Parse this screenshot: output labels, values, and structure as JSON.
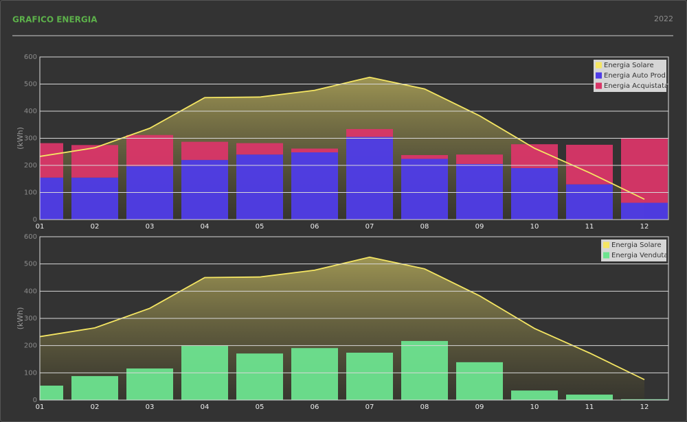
{
  "header": {
    "title": "GRAFICO ENERGIA",
    "year": "2022"
  },
  "chart_data": [
    {
      "type": "bar",
      "y_label": "(kWh)",
      "stacked": true,
      "grid": true,
      "legend": "top-right",
      "categories": [
        "01",
        "02",
        "03",
        "04",
        "05",
        "06",
        "07",
        "08",
        "09",
        "10",
        "11",
        "12"
      ],
      "ylim": [
        0,
        600
      ],
      "yticks": [
        0,
        100,
        200,
        300,
        400,
        500,
        600
      ],
      "series": [
        {
          "name": "Energia Solare",
          "type": "line",
          "color": "#f5e663",
          "values": [
            233,
            265,
            337,
            450,
            452,
            477,
            525,
            482,
            383,
            263,
            173,
            75
          ]
        },
        {
          "name": "Energia Auto Prod.",
          "type": "bar",
          "color": "#4f3ce8",
          "values": [
            155,
            155,
            197,
            220,
            240,
            248,
            305,
            224,
            205,
            190,
            130,
            62
          ]
        },
        {
          "name": "Energia Acquistata",
          "type": "bar",
          "color": "#d93668",
          "values": [
            127,
            120,
            115,
            67,
            42,
            14,
            29,
            14,
            35,
            88,
            146,
            238
          ]
        }
      ]
    },
    {
      "type": "bar",
      "y_label": "(kWh)",
      "stacked": true,
      "grid": true,
      "legend": "top-right",
      "categories": [
        "01",
        "02",
        "03",
        "04",
        "05",
        "06",
        "07",
        "08",
        "09",
        "10",
        "11",
        "12"
      ],
      "ylim": [
        0,
        600
      ],
      "yticks": [
        0,
        100,
        200,
        300,
        400,
        500,
        600
      ],
      "series": [
        {
          "name": "Energia Solare",
          "type": "line",
          "color": "#f5e663",
          "values": [
            233,
            265,
            337,
            450,
            452,
            477,
            525,
            482,
            383,
            263,
            173,
            75
          ]
        },
        {
          "name": "Energia Venduta",
          "type": "bar",
          "color": "#6de38f",
          "values": [
            53,
            88,
            116,
            199,
            171,
            191,
            174,
            217,
            139,
            35,
            20,
            3
          ]
        }
      ]
    }
  ]
}
